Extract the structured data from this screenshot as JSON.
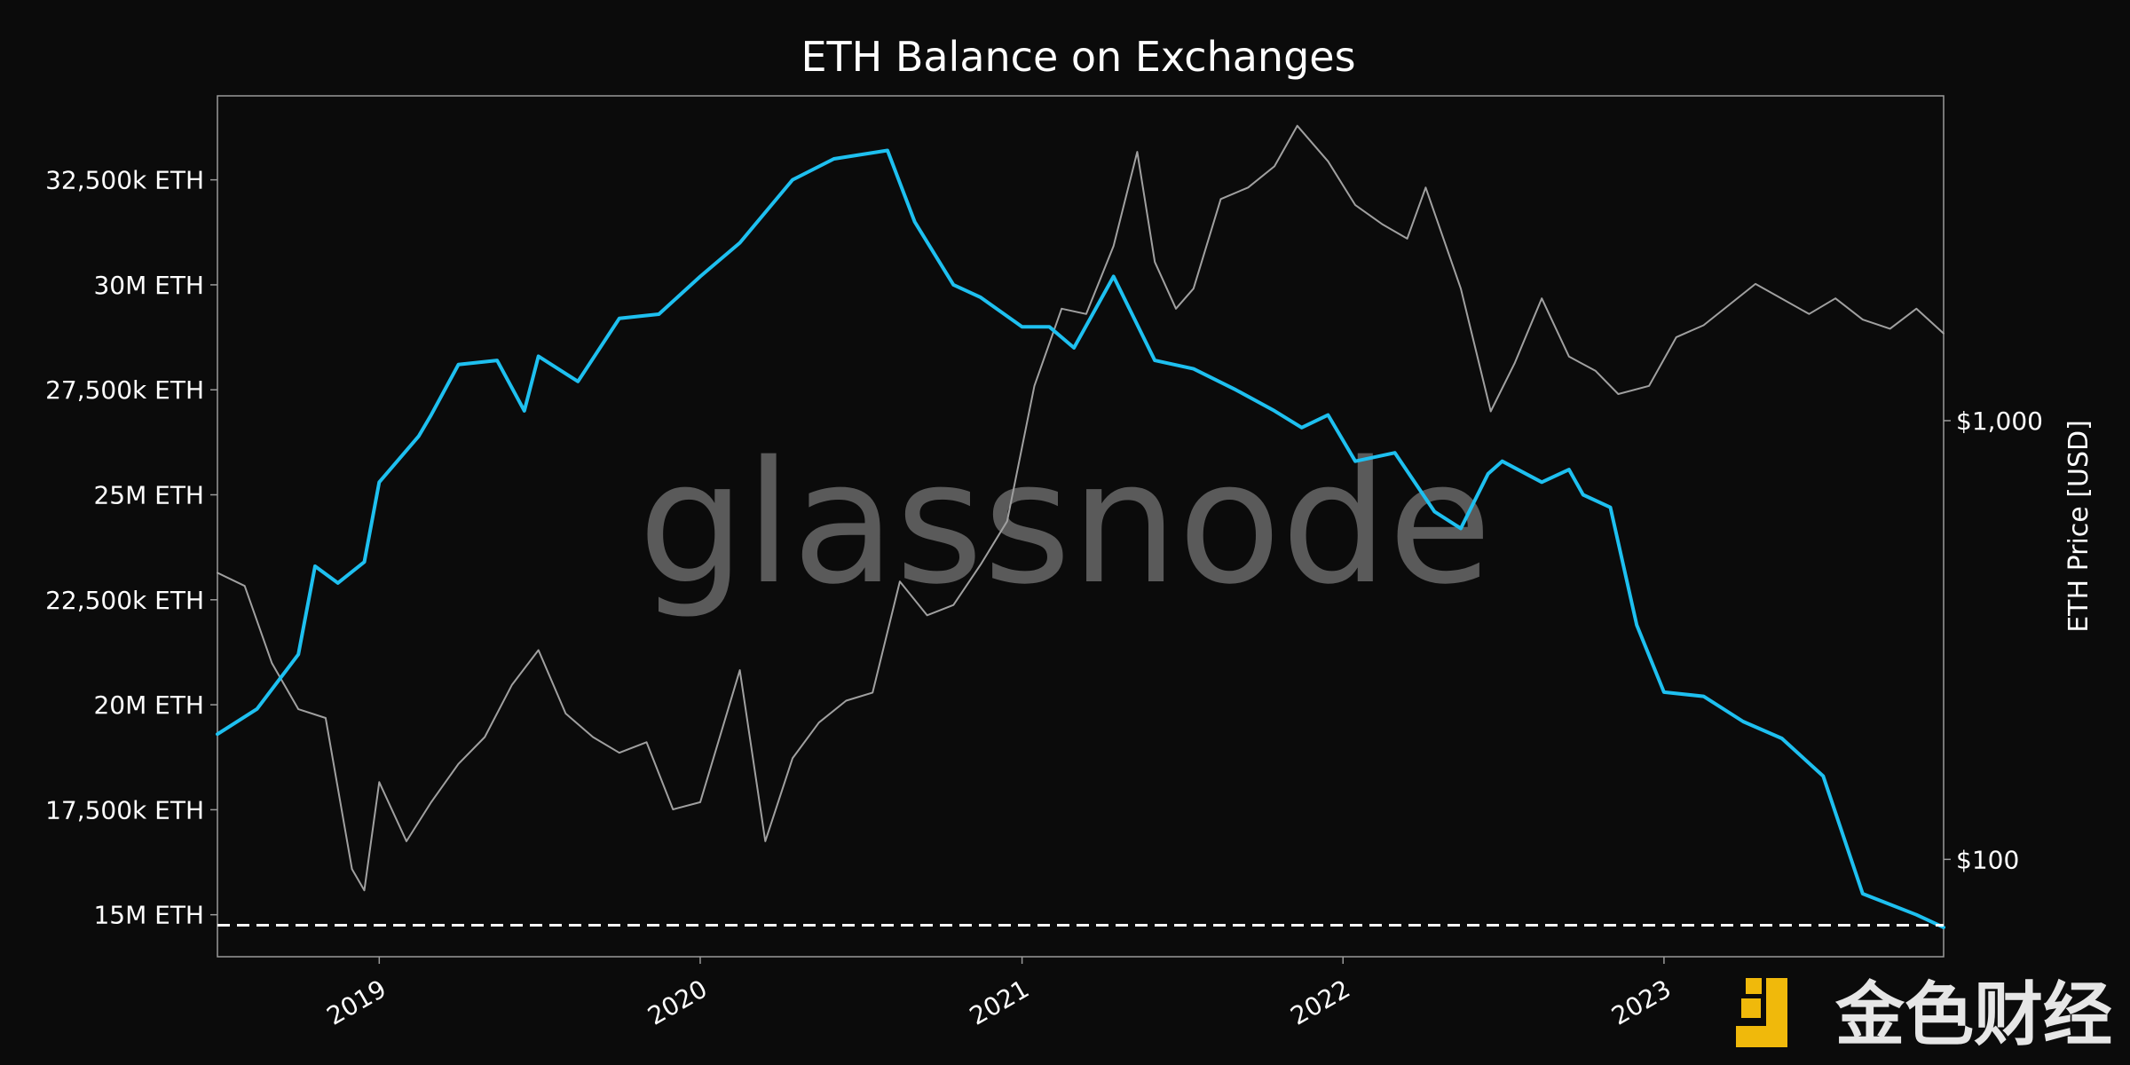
{
  "chart_data": {
    "type": "line",
    "title": "ETH Balance on Exchanges",
    "y_left_ticks": [
      "32,500k ETH",
      "30M ETH",
      "27,500k ETH",
      "25M ETH",
      "22,500k ETH",
      "20M ETH",
      "17,500k ETH",
      "15M ETH"
    ],
    "y_left_tick_values": [
      32500000,
      30000000,
      27500000,
      25000000,
      22500000,
      20000000,
      17500000,
      15000000
    ],
    "y_left_range": [
      14000000,
      34500000
    ],
    "y_right_label": "ETH Price [USD]",
    "y_right_ticks": [
      "$1,000",
      "$100"
    ],
    "y_right_tick_values": [
      1000,
      100
    ],
    "y_right_scale": "log",
    "y_right_range": [
      60,
      5500
    ],
    "x_ticks": [
      "2019",
      "2020",
      "2021",
      "2022",
      "2023"
    ],
    "x_tick_values": [
      "2019-01-01",
      "2020-01-01",
      "2021-01-01",
      "2022-01-01",
      "2023-01-01"
    ],
    "x_range": [
      "2018-07-01",
      "2023-11-15"
    ],
    "reference_line": {
      "value": 14750000,
      "style": "dashed",
      "color": "#ffffff"
    },
    "series": [
      {
        "role": "balance",
        "color": "#1ec0f0",
        "axis": "left",
        "points": [
          [
            "2018-07-01",
            19300000
          ],
          [
            "2018-08-15",
            19900000
          ],
          [
            "2018-10-01",
            21200000
          ],
          [
            "2018-10-20",
            23300000
          ],
          [
            "2018-11-15",
            22900000
          ],
          [
            "2018-12-15",
            23400000
          ],
          [
            "2019-01-01",
            25300000
          ],
          [
            "2019-02-15",
            26400000
          ],
          [
            "2019-03-01",
            26900000
          ],
          [
            "2019-04-01",
            28100000
          ],
          [
            "2019-05-15",
            28200000
          ],
          [
            "2019-06-15",
            27000000
          ],
          [
            "2019-07-01",
            28300000
          ],
          [
            "2019-08-15",
            27700000
          ],
          [
            "2019-10-01",
            29200000
          ],
          [
            "2019-11-15",
            29300000
          ],
          [
            "2020-01-01",
            30200000
          ],
          [
            "2020-02-15",
            31000000
          ],
          [
            "2020-04-15",
            32500000
          ],
          [
            "2020-06-01",
            33000000
          ],
          [
            "2020-08-01",
            33200000
          ],
          [
            "2020-09-01",
            31500000
          ],
          [
            "2020-10-15",
            30000000
          ],
          [
            "2020-11-15",
            29700000
          ],
          [
            "2021-01-01",
            29000000
          ],
          [
            "2021-02-01",
            29000000
          ],
          [
            "2021-03-01",
            28500000
          ],
          [
            "2021-04-15",
            30200000
          ],
          [
            "2021-06-01",
            28200000
          ],
          [
            "2021-07-15",
            28000000
          ],
          [
            "2021-09-01",
            27500000
          ],
          [
            "2021-10-15",
            27000000
          ],
          [
            "2021-11-15",
            26600000
          ],
          [
            "2021-12-15",
            26900000
          ],
          [
            "2022-01-15",
            25800000
          ],
          [
            "2022-03-01",
            26000000
          ],
          [
            "2022-04-15",
            24600000
          ],
          [
            "2022-05-15",
            24200000
          ],
          [
            "2022-06-15",
            25500000
          ],
          [
            "2022-07-01",
            25800000
          ],
          [
            "2022-08-15",
            25300000
          ],
          [
            "2022-09-15",
            25600000
          ],
          [
            "2022-10-01",
            25000000
          ],
          [
            "2022-11-01",
            24700000
          ],
          [
            "2022-12-01",
            21900000
          ],
          [
            "2023-01-01",
            20300000
          ],
          [
            "2023-02-15",
            20200000
          ],
          [
            "2023-04-01",
            19600000
          ],
          [
            "2023-05-15",
            19200000
          ],
          [
            "2023-07-01",
            18300000
          ],
          [
            "2023-08-15",
            15500000
          ],
          [
            "2023-10-15",
            15000000
          ],
          [
            "2023-11-15",
            14700000
          ]
        ]
      },
      {
        "role": "price",
        "color": "#a0a0a0",
        "axis": "right",
        "points": [
          [
            "2018-07-01",
            450
          ],
          [
            "2018-08-01",
            420
          ],
          [
            "2018-09-01",
            280
          ],
          [
            "2018-10-01",
            220
          ],
          [
            "2018-11-01",
            210
          ],
          [
            "2018-12-01",
            95
          ],
          [
            "2018-12-15",
            85
          ],
          [
            "2019-01-01",
            150
          ],
          [
            "2019-02-01",
            110
          ],
          [
            "2019-03-01",
            135
          ],
          [
            "2019-04-01",
            165
          ],
          [
            "2019-05-01",
            190
          ],
          [
            "2019-06-01",
            250
          ],
          [
            "2019-07-01",
            300
          ],
          [
            "2019-08-01",
            215
          ],
          [
            "2019-09-01",
            190
          ],
          [
            "2019-10-01",
            175
          ],
          [
            "2019-11-01",
            185
          ],
          [
            "2019-12-01",
            130
          ],
          [
            "2020-01-01",
            135
          ],
          [
            "2020-02-15",
            270
          ],
          [
            "2020-03-15",
            110
          ],
          [
            "2020-04-15",
            170
          ],
          [
            "2020-05-15",
            205
          ],
          [
            "2020-06-15",
            230
          ],
          [
            "2020-07-15",
            240
          ],
          [
            "2020-08-15",
            430
          ],
          [
            "2020-09-15",
            360
          ],
          [
            "2020-10-15",
            380
          ],
          [
            "2020-11-15",
            470
          ],
          [
            "2020-12-15",
            590
          ],
          [
            "2021-01-15",
            1200
          ],
          [
            "2021-02-15",
            1800
          ],
          [
            "2021-03-15",
            1750
          ],
          [
            "2021-04-15",
            2500
          ],
          [
            "2021-05-12",
            4100
          ],
          [
            "2021-06-01",
            2300
          ],
          [
            "2021-06-25",
            1800
          ],
          [
            "2021-07-15",
            2000
          ],
          [
            "2021-08-15",
            3200
          ],
          [
            "2021-09-15",
            3400
          ],
          [
            "2021-10-15",
            3800
          ],
          [
            "2021-11-10",
            4700
          ],
          [
            "2021-12-15",
            3900
          ],
          [
            "2022-01-15",
            3100
          ],
          [
            "2022-02-15",
            2800
          ],
          [
            "2022-03-15",
            2600
          ],
          [
            "2022-04-05",
            3400
          ],
          [
            "2022-05-15",
            2000
          ],
          [
            "2022-06-18",
            1050
          ],
          [
            "2022-07-15",
            1350
          ],
          [
            "2022-08-15",
            1900
          ],
          [
            "2022-09-15",
            1400
          ],
          [
            "2022-10-15",
            1300
          ],
          [
            "2022-11-10",
            1150
          ],
          [
            "2022-12-15",
            1200
          ],
          [
            "2023-01-15",
            1550
          ],
          [
            "2023-02-15",
            1650
          ],
          [
            "2023-04-15",
            2050
          ],
          [
            "2023-06-15",
            1750
          ],
          [
            "2023-07-15",
            1900
          ],
          [
            "2023-08-15",
            1700
          ],
          [
            "2023-09-15",
            1620
          ],
          [
            "2023-10-15",
            1800
          ],
          [
            "2023-11-15",
            1580
          ]
        ]
      }
    ]
  },
  "watermark": "glassnode",
  "brand": {
    "logo": "jinse-logo-icon",
    "text": "金色财经",
    "color": "#f0b90b"
  }
}
